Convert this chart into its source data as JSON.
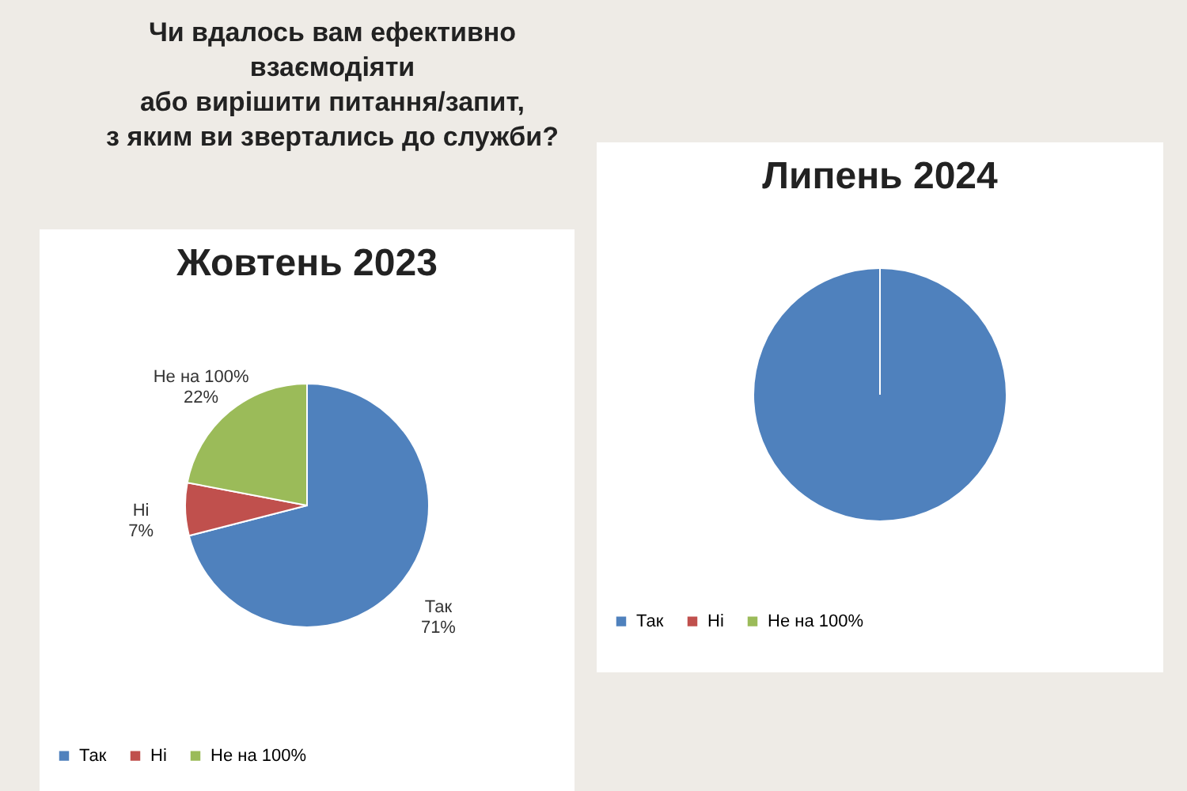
{
  "chart_data": [
    {
      "type": "other",
      "title": "Чи вдалось вам ефективно\nвзаємодіяти\nабо вирішити питання/запит,\nз яким ви звертались до служби?"
    },
    {
      "type": "pie",
      "title": "Жовтень 2023",
      "categories": [
        "Так",
        "Ні",
        "Не на 100%"
      ],
      "values": [
        71,
        7,
        22
      ],
      "colors": [
        "#4f81bd",
        "#c0504d",
        "#9bbb59"
      ],
      "value_labels": [
        "71%",
        "7%",
        "22%"
      ],
      "legend": "bottom"
    },
    {
      "type": "pie",
      "title": "Липень 2024",
      "categories": [
        "Так",
        "Ні",
        "Не на 100%"
      ],
      "values": [
        100,
        0,
        0
      ],
      "colors": [
        "#4f81bd",
        "#c0504d",
        "#9bbb59"
      ],
      "legend": "bottom"
    }
  ]
}
